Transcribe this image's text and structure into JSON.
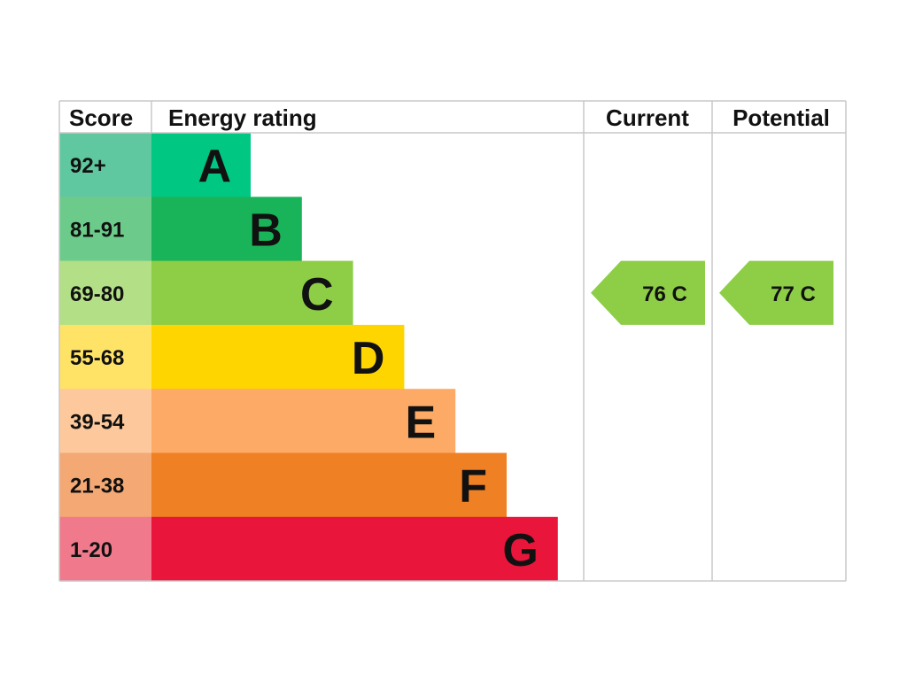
{
  "chart_data": {
    "type": "bar",
    "headers": {
      "score": "Score",
      "energy_rating": "Energy rating",
      "current": "Current",
      "potential": "Potential"
    },
    "bands": [
      {
        "letter": "A",
        "score_range": "92+",
        "color": "#00c781",
        "score_color": "#5fc8a0"
      },
      {
        "letter": "B",
        "score_range": "81-91",
        "color": "#19b459",
        "score_color": "#6ccb8b"
      },
      {
        "letter": "C",
        "score_range": "69-80",
        "color": "#8dce46",
        "score_color": "#b3df86"
      },
      {
        "letter": "D",
        "score_range": "55-68",
        "color": "#ffd500",
        "score_color": "#ffe366"
      },
      {
        "letter": "E",
        "score_range": "39-54",
        "color": "#fcaa65",
        "score_color": "#fdc89b"
      },
      {
        "letter": "F",
        "score_range": "21-38",
        "color": "#ef8023",
        "score_color": "#f4a874"
      },
      {
        "letter": "G",
        "score_range": "1-20",
        "color": "#e9153b",
        "score_color": "#f07a8c"
      }
    ],
    "current": {
      "score": 76,
      "band": "C",
      "label": "76  C",
      "color": "#8dce46"
    },
    "potential": {
      "score": 77,
      "band": "C",
      "label": "77  C",
      "color": "#8dce46"
    }
  }
}
